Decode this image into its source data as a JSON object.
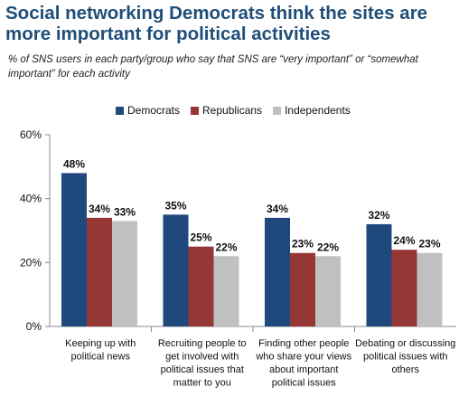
{
  "header": {
    "title": "Social networking Democrats think the sites are more important for political activities",
    "subtitle": "% of SNS users in each party/group who say that SNS are “very important” or “somewhat important” for each activity"
  },
  "chart_data": {
    "type": "bar",
    "title": "Social networking Democrats think the sites are more important for political activities",
    "subtitle": "% of SNS users in each party/group who say that SNS are “very important” or “somewhat important” for each activity",
    "categories": [
      [
        "Keeping up with",
        "political news"
      ],
      [
        "Recruiting people to",
        "get involved with",
        "political issues that",
        "matter to you"
      ],
      [
        "Finding other people",
        "who share your views",
        "about important",
        "political issues"
      ],
      [
        "Debating or discussing",
        "political issues with",
        "others"
      ]
    ],
    "series": [
      {
        "name": "Democrats",
        "color": "#1f497d",
        "values": [
          48,
          35,
          34,
          32
        ]
      },
      {
        "name": "Republicans",
        "color": "#953735",
        "values": [
          34,
          25,
          23,
          24
        ]
      },
      {
        "name": "Independents",
        "color": "#c0c0c0",
        "values": [
          33,
          22,
          22,
          23
        ]
      }
    ],
    "value_suffix": "%",
    "yticks": [
      "0%",
      "20%",
      "40%",
      "60%"
    ],
    "ylim": [
      0,
      60
    ],
    "xlabel": "",
    "ylabel": "",
    "grid": false,
    "legend": "top"
  }
}
